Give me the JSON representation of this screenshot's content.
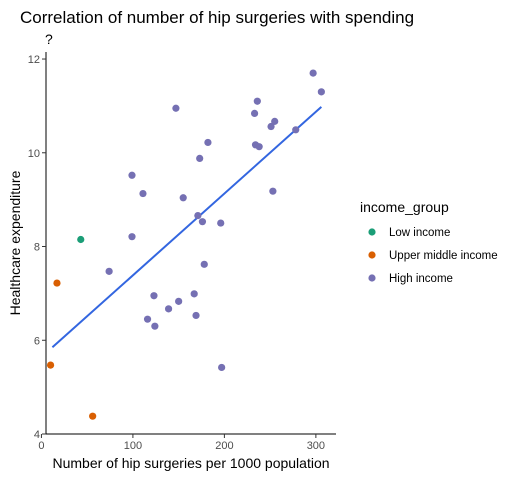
{
  "chart_data": {
    "type": "scatter",
    "title": "Correlation of number of hip surgeries with spending",
    "subtitle": "?",
    "xlabel": "Number of hip surgeries per 1000 population",
    "ylabel": "Healthcare expenditure",
    "xlim": [
      5,
      322
    ],
    "ylim": [
      4,
      12.15
    ],
    "x_ticks": [
      0,
      100,
      200,
      300
    ],
    "y_ticks": [
      4,
      6,
      8,
      10,
      12
    ],
    "grid": false,
    "legend": {
      "title": "income_group",
      "placement": "right",
      "entries": [
        {
          "name": "Low income",
          "color": "#1b9e77"
        },
        {
          "name": "Upper middle income",
          "color": "#d95f02"
        },
        {
          "name": "High income",
          "color": "#7570b3"
        }
      ]
    },
    "trend_line": {
      "x": [
        12,
        306
      ],
      "y": [
        5.85,
        10.98
      ],
      "color": "#3366e0"
    },
    "series": [
      {
        "name": "Low income",
        "color": "#1b9e77",
        "points": [
          [
            43,
            8.15
          ]
        ]
      },
      {
        "name": "Upper middle income",
        "color": "#d95f02",
        "points": [
          [
            17,
            7.22
          ],
          [
            10,
            5.47
          ],
          [
            56,
            4.38
          ]
        ]
      },
      {
        "name": "High income",
        "color": "#7570b3",
        "points": [
          [
            74,
            7.47
          ],
          [
            99,
            9.52
          ],
          [
            99,
            8.21
          ],
          [
            111,
            9.13
          ],
          [
            116,
            6.45
          ],
          [
            123,
            6.95
          ],
          [
            124,
            6.3
          ],
          [
            139,
            6.67
          ],
          [
            147,
            10.95
          ],
          [
            150,
            6.83
          ],
          [
            155,
            9.04
          ],
          [
            167,
            6.99
          ],
          [
            169,
            6.53
          ],
          [
            171,
            8.66
          ],
          [
            173,
            9.88
          ],
          [
            176,
            8.53
          ],
          [
            178,
            7.62
          ],
          [
            182,
            10.22
          ],
          [
            196,
            8.5
          ],
          [
            197,
            5.42
          ],
          [
            233,
            10.84
          ],
          [
            234,
            10.17
          ],
          [
            236,
            11.1
          ],
          [
            238,
            10.13
          ],
          [
            251,
            10.56
          ],
          [
            253,
            9.18
          ],
          [
            255,
            10.67
          ],
          [
            278,
            10.49
          ],
          [
            297,
            11.7
          ],
          [
            306,
            11.3
          ]
        ]
      }
    ]
  }
}
